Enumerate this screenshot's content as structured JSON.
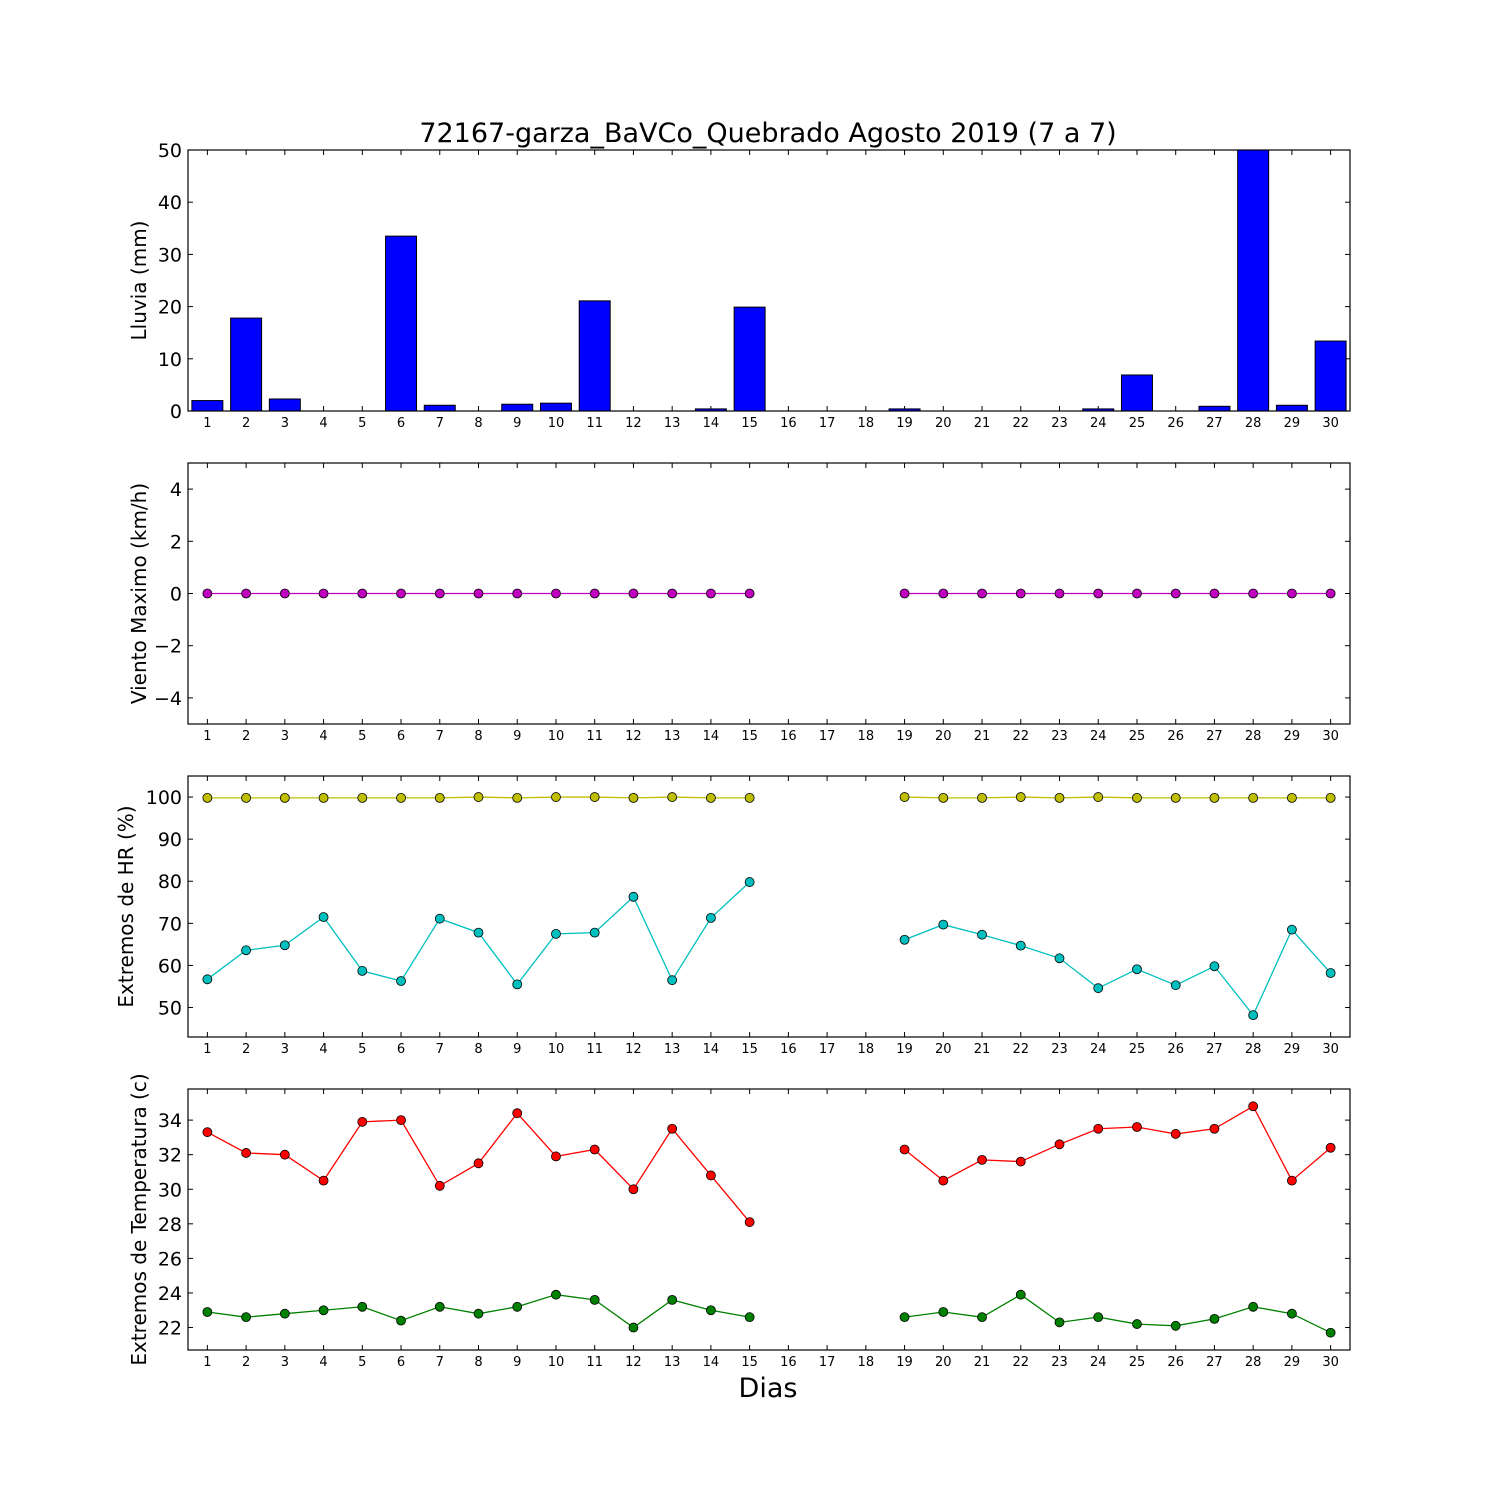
{
  "title": "72167-garza_BaVCo_Quebrado Agosto 2019  (7 a 7)",
  "xlabel": "Dias",
  "chart_data": [
    {
      "type": "bar",
      "ylabel": "Lluvia (mm)",
      "ylim": [
        0,
        50
      ],
      "yticks": [
        0,
        10,
        20,
        30,
        40,
        50
      ],
      "categories": [
        1,
        2,
        3,
        4,
        5,
        6,
        7,
        8,
        9,
        10,
        11,
        12,
        13,
        14,
        15,
        16,
        17,
        18,
        19,
        20,
        21,
        22,
        23,
        24,
        25,
        26,
        27,
        28,
        29,
        30
      ],
      "series": [
        {
          "color": "#0000ff",
          "values": [
            2.0,
            17.8,
            2.3,
            0,
            0,
            33.5,
            1.1,
            0,
            1.3,
            1.5,
            21.1,
            0,
            0,
            0.4,
            19.9,
            0,
            0,
            0,
            0.4,
            0,
            0,
            0,
            0,
            0.4,
            6.9,
            0,
            0.9,
            50,
            1.1,
            13.4
          ]
        }
      ]
    },
    {
      "type": "line",
      "ylabel": "Viento Maximo (km/h)",
      "ylim": [
        -5,
        5
      ],
      "yticks": [
        -4,
        -2,
        0,
        2,
        4
      ],
      "x": [
        1,
        2,
        3,
        4,
        5,
        6,
        7,
        8,
        9,
        10,
        11,
        12,
        13,
        14,
        15,
        16,
        17,
        18,
        19,
        20,
        21,
        22,
        23,
        24,
        25,
        26,
        27,
        28,
        29,
        30
      ],
      "series": [
        {
          "color": "#bf00bf",
          "values": [
            0,
            0,
            0,
            0,
            0,
            0,
            0,
            0,
            0,
            0,
            0,
            0,
            0,
            0,
            0,
            null,
            null,
            null,
            0,
            0,
            0,
            0,
            0,
            0,
            0,
            0,
            0,
            0,
            0,
            0
          ]
        }
      ]
    },
    {
      "type": "line",
      "ylabel": "Extremos de HR (%)",
      "ylim": [
        43,
        105
      ],
      "yticks": [
        50,
        60,
        70,
        80,
        90,
        100
      ],
      "x": [
        1,
        2,
        3,
        4,
        5,
        6,
        7,
        8,
        9,
        10,
        11,
        12,
        13,
        14,
        15,
        16,
        17,
        18,
        19,
        20,
        21,
        22,
        23,
        24,
        25,
        26,
        27,
        28,
        29,
        30
      ],
      "series": [
        {
          "color": "#bfbf00",
          "values": [
            99.8,
            99.8,
            99.8,
            99.8,
            99.8,
            99.8,
            99.8,
            100,
            99.8,
            100,
            100,
            99.8,
            100,
            99.8,
            99.8,
            null,
            null,
            null,
            100,
            99.8,
            99.8,
            100,
            99.8,
            100,
            99.8,
            99.8,
            99.8,
            99.8,
            99.8,
            99.8
          ]
        },
        {
          "color": "#00bfbf",
          "values": [
            56.7,
            63.6,
            64.8,
            71.5,
            58.7,
            56.3,
            71.1,
            67.8,
            55.5,
            67.5,
            67.8,
            76.3,
            56.5,
            71.3,
            79.8,
            null,
            null,
            null,
            66.1,
            69.7,
            67.3,
            64.7,
            61.7,
            54.6,
            59.1,
            55.3,
            59.8,
            48.2,
            68.5,
            58.2
          ]
        }
      ]
    },
    {
      "type": "line",
      "ylabel": "Extremos de Temperatura (c)",
      "ylim": [
        20.7,
        35.8
      ],
      "yticks": [
        22,
        24,
        26,
        28,
        30,
        32,
        34
      ],
      "x": [
        1,
        2,
        3,
        4,
        5,
        6,
        7,
        8,
        9,
        10,
        11,
        12,
        13,
        14,
        15,
        16,
        17,
        18,
        19,
        20,
        21,
        22,
        23,
        24,
        25,
        26,
        27,
        28,
        29,
        30
      ],
      "series": [
        {
          "color": "#ff0000",
          "values": [
            33.3,
            32.1,
            32.0,
            30.5,
            33.9,
            34.0,
            30.2,
            31.5,
            34.4,
            31.9,
            32.3,
            30.0,
            33.5,
            30.8,
            28.1,
            null,
            null,
            null,
            32.3,
            30.5,
            31.7,
            31.6,
            32.6,
            33.5,
            33.6,
            33.2,
            33.5,
            34.8,
            30.5,
            32.4
          ]
        },
        {
          "color": "#008000",
          "values": [
            22.9,
            22.6,
            22.8,
            23.0,
            23.2,
            22.4,
            23.2,
            22.8,
            23.2,
            23.9,
            23.6,
            22.0,
            23.6,
            23.0,
            22.6,
            null,
            null,
            null,
            22.6,
            22.9,
            22.6,
            23.9,
            22.3,
            22.6,
            22.2,
            22.1,
            22.5,
            23.2,
            22.8,
            21.7
          ]
        }
      ]
    }
  ]
}
